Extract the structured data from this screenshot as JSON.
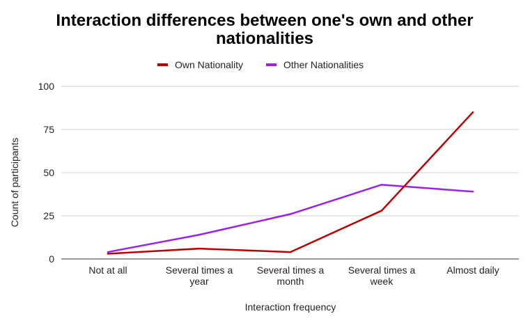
{
  "chart_data": {
    "type": "line",
    "title_lines": [
      "Interaction differences between one's own and other",
      "nationalities"
    ],
    "xlabel": "Interaction frequency",
    "ylabel": "Count of participants",
    "categories": [
      [
        "Not at all"
      ],
      [
        "Several times a",
        "year"
      ],
      [
        "Several times a",
        "month"
      ],
      [
        "Several times a",
        "week"
      ],
      [
        "Almost daily"
      ]
    ],
    "y_ticks": [
      "0",
      "25",
      "50",
      "75",
      "100"
    ],
    "ylim": [
      0,
      100
    ],
    "grid": true,
    "legend_position": "top",
    "series": [
      {
        "name": "Own Nationality",
        "color": "#c00000",
        "values": [
          3,
          6,
          4,
          28,
          85
        ]
      },
      {
        "name": "Other Nationalities",
        "color": "#9b1ff2",
        "values": [
          4,
          14,
          26,
          43,
          39
        ]
      }
    ]
  }
}
